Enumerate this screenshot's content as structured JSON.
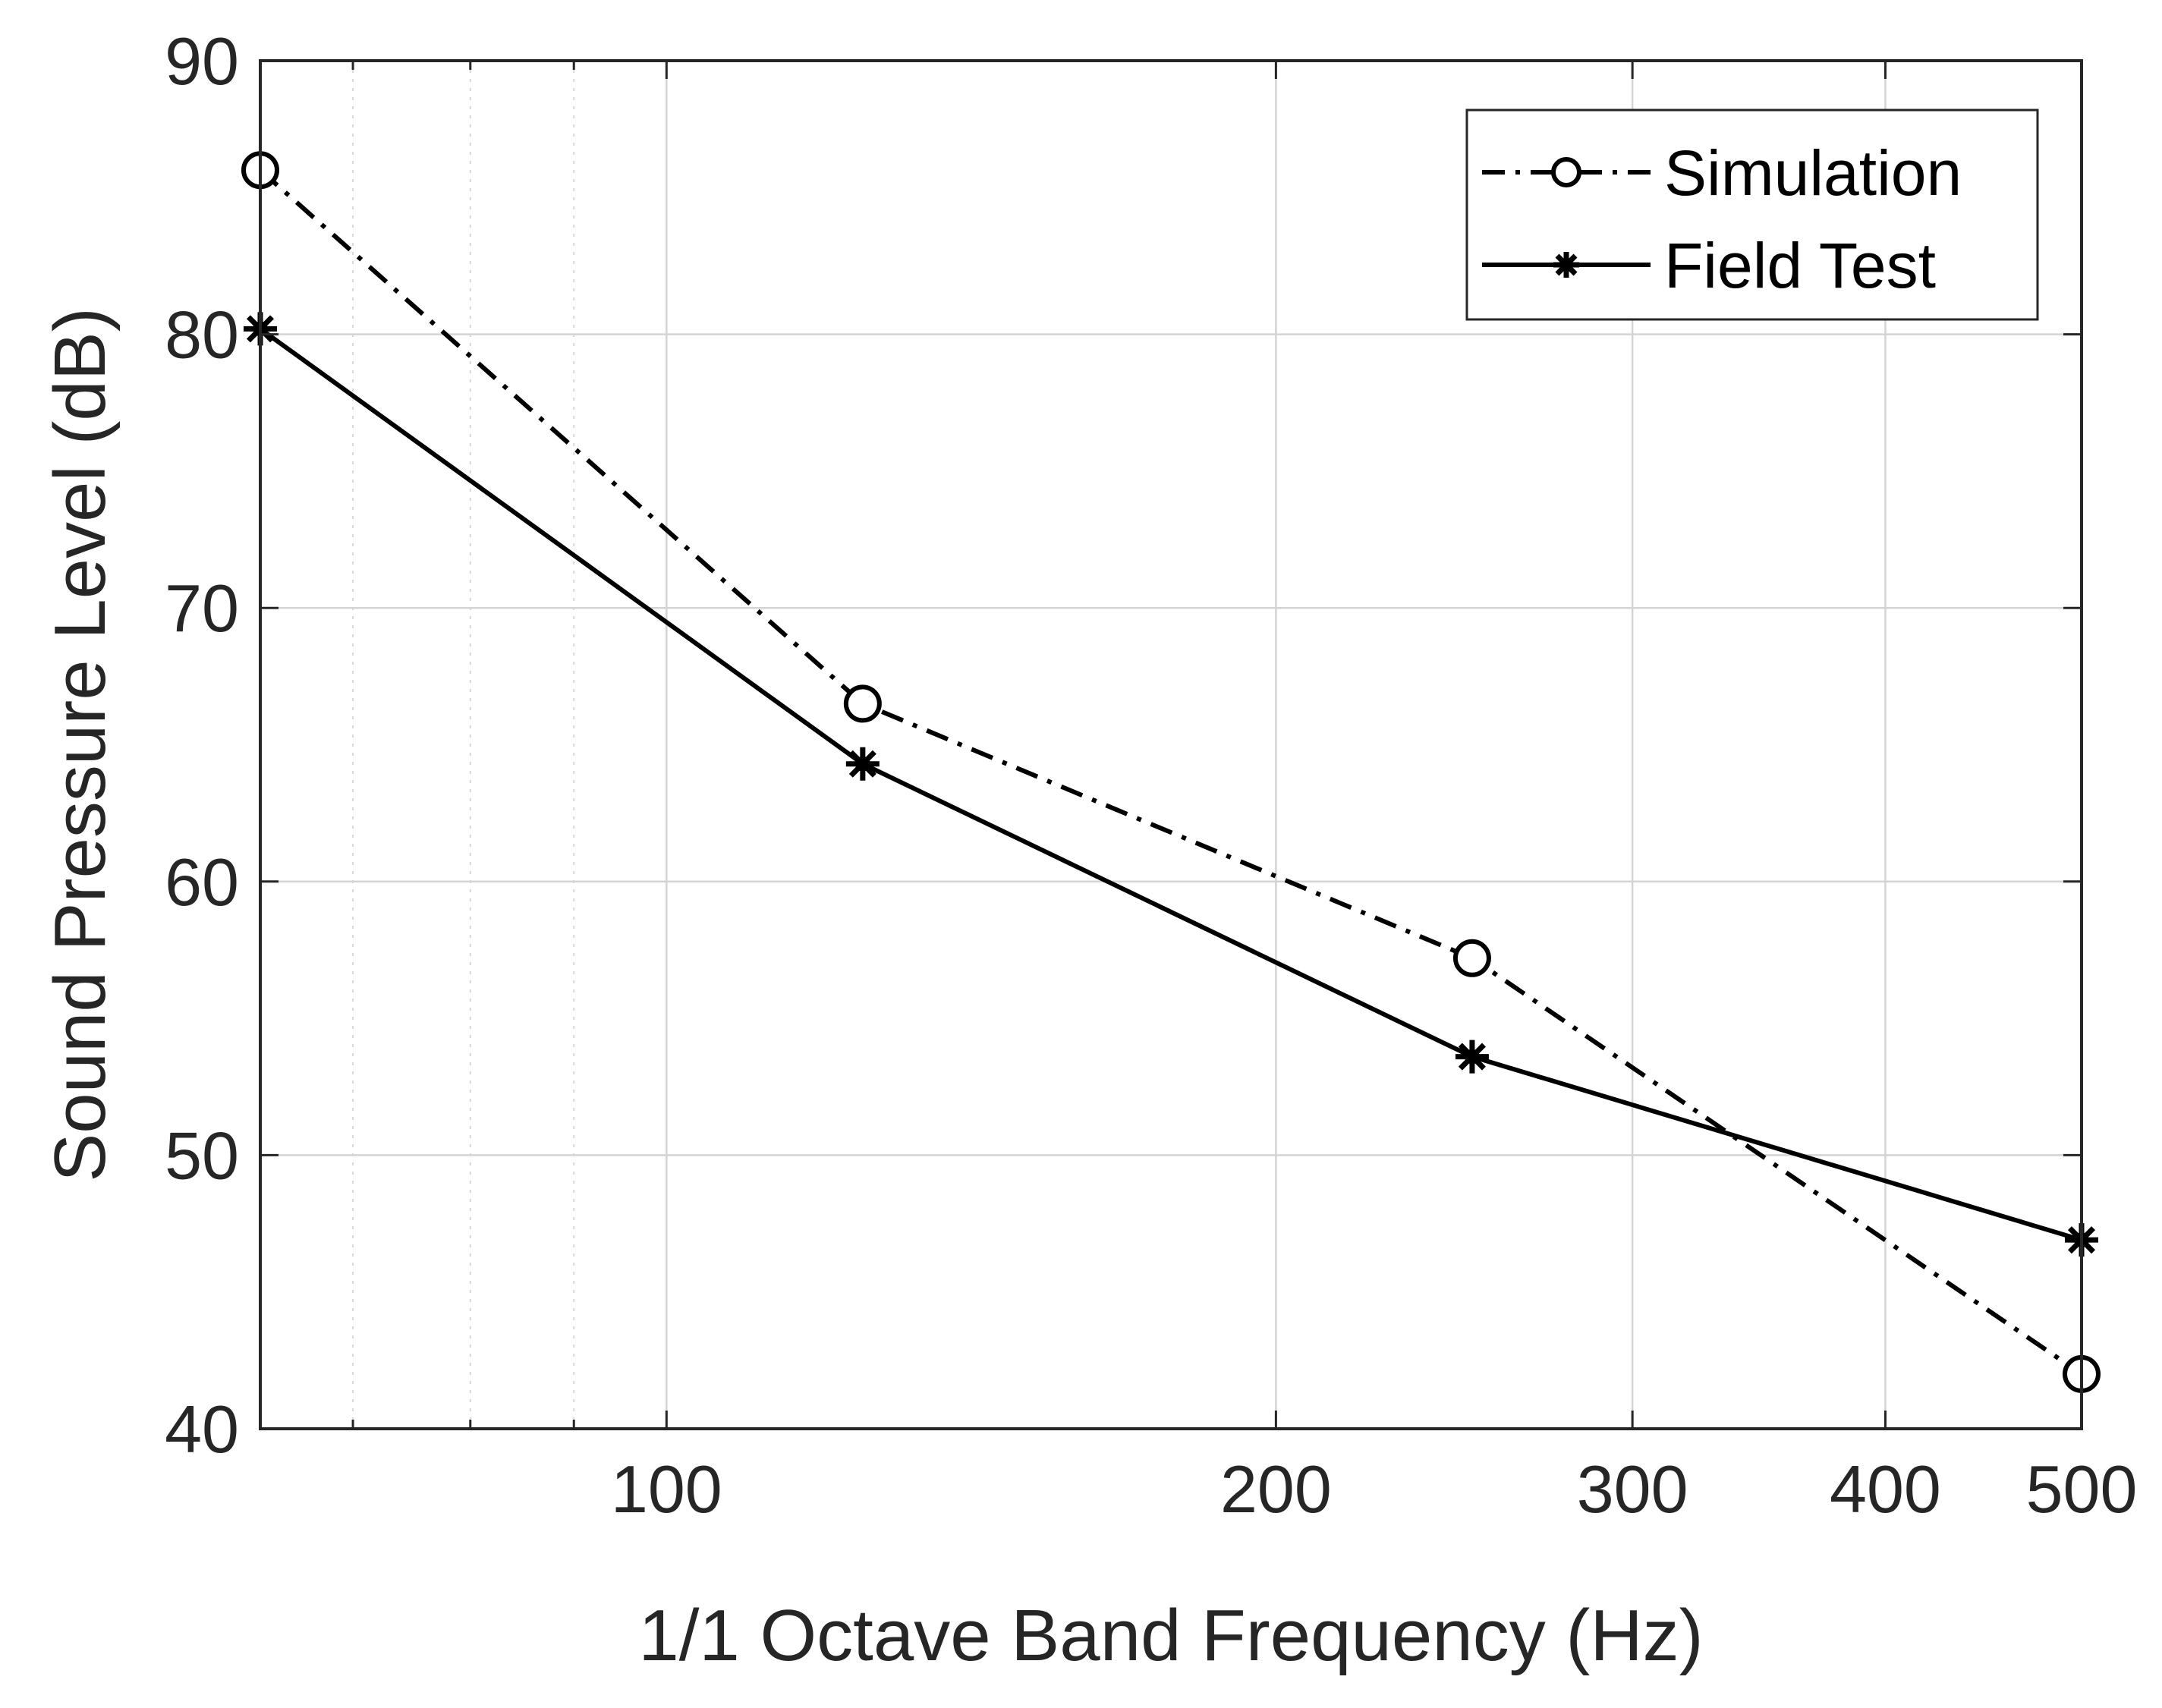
{
  "chart_data": {
    "type": "line",
    "title": "",
    "xlabel": "1/1 Octave Band Frequency (Hz)",
    "ylabel": "Sound Pressure Level (dB)",
    "xscale": "log",
    "xlim": [
      63,
      500
    ],
    "ylim": [
      40,
      90
    ],
    "x": [
      63,
      125,
      250,
      500
    ],
    "xticks": [
      100,
      200,
      300,
      400,
      500
    ],
    "xtick_labels": [
      "100",
      "200",
      "300",
      "400",
      "500"
    ],
    "yticks": [
      40,
      50,
      60,
      70,
      80,
      90
    ],
    "ytick_labels": [
      "40",
      "50",
      "60",
      "70",
      "80",
      "90"
    ],
    "grid": true,
    "minor_grid": true,
    "legend_location": "top-right",
    "series": [
      {
        "name": "Simulation",
        "values": [
          86,
          66.5,
          57.2,
          42
        ],
        "line_style": "dash-dot",
        "marker": "open-circle",
        "color": "#000000"
      },
      {
        "name": "Field Test",
        "values": [
          80.2,
          64.3,
          53.6,
          46.9
        ],
        "line_style": "solid",
        "marker": "asterisk",
        "color": "#000000"
      }
    ]
  }
}
